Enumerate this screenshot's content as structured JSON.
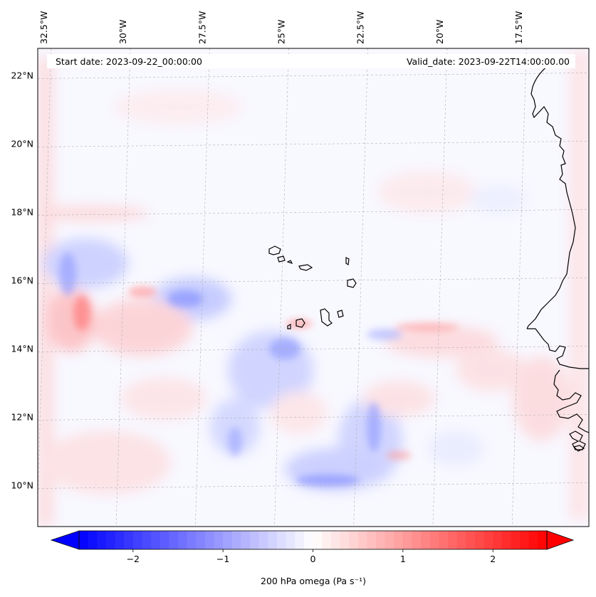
{
  "figure": {
    "start_date": "Start date: 2023-09-22_00:00:00",
    "valid_date": "Valid_date: 2023-09-22T14:00:00.00"
  },
  "map": {
    "field": "200 hPa omega",
    "region": "Cape Verde / West African coast",
    "lon_range": [
      -32.7,
      -15.3
    ],
    "lat_range": [
      8.8,
      22.8
    ],
    "lon_ticks": [
      {
        "value": -32.5,
        "label": "32.5°W"
      },
      {
        "value": -30.0,
        "label": "30°W"
      },
      {
        "value": -27.5,
        "label": "27.5°W"
      },
      {
        "value": -25.0,
        "label": "25°W"
      },
      {
        "value": -22.5,
        "label": "22.5°W"
      },
      {
        "value": -20.0,
        "label": "20°W"
      },
      {
        "value": -17.5,
        "label": "17.5°W"
      }
    ],
    "lat_ticks": [
      {
        "value": 22,
        "label": "22°N"
      },
      {
        "value": 20,
        "label": "20°N"
      },
      {
        "value": 18,
        "label": "18°N"
      },
      {
        "value": 16,
        "label": "16°N"
      },
      {
        "value": 14,
        "label": "14°N"
      },
      {
        "value": 12,
        "label": "12°N"
      },
      {
        "value": 10,
        "label": "10°N"
      }
    ]
  },
  "colorbar": {
    "label": "200 hPa omega (Pa s⁻¹)",
    "vmin": -2.6,
    "vmax": 2.6,
    "ticks": [
      {
        "value": -2,
        "label": "−2"
      },
      {
        "value": -1,
        "label": "−1"
      },
      {
        "value": 0,
        "label": "0"
      },
      {
        "value": 1,
        "label": "1"
      },
      {
        "value": 2,
        "label": "2"
      }
    ],
    "neg_color": "#0000ff",
    "mid_color": "#ffffff",
    "pos_color": "#ff0000"
  },
  "colors": {
    "background": "#f7f7ff",
    "coastline": "#000000",
    "gridline": "#b0b0b0"
  }
}
